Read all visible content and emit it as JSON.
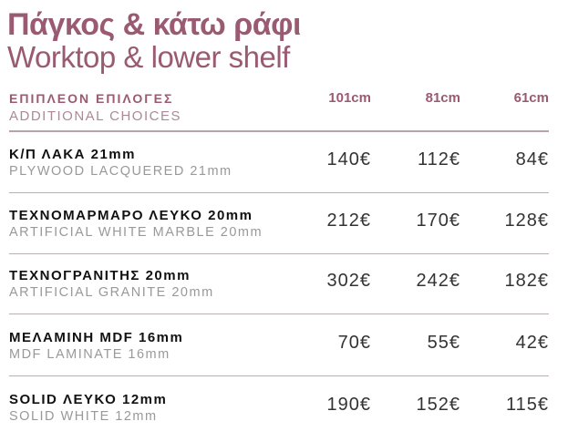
{
  "title": "Πάγκος & κάτω ράφι",
  "subtitle": "Worktop & lower shelf",
  "header": {
    "label_gr": "ΕΠΙΠΛΕΟΝ ΕΠΙΛΟΓΕΣ",
    "label_en": "ADDITIONAL CHOICES",
    "columns": [
      "101cm",
      "81cm",
      "61cm"
    ]
  },
  "accent_color": "#9a5a72",
  "rows": [
    {
      "name_gr": "Κ/Π ΛΑΚΑ 21mm",
      "name_en": "PLYWOOD LACQUERED 21mm",
      "prices": [
        "140€",
        "112€",
        "84€"
      ]
    },
    {
      "name_gr": "ΤΕΧΝΟΜΑΡΜΑΡΟ ΛΕΥΚΟ 20mm",
      "name_en": "ARTIFICIAL WHITE MARBLE 20mm",
      "prices": [
        "212€",
        "170€",
        "128€"
      ]
    },
    {
      "name_gr": "ΤΕΧΝΟΓΡΑΝΙΤΗΣ 20mm",
      "name_en": "ARTIFICIAL GRANITE 20mm",
      "prices": [
        "302€",
        "242€",
        "182€"
      ]
    },
    {
      "name_gr": "ΜΕΛΑΜΙΝΗ MDF 16mm",
      "name_en": "MDF LAMINATE 16mm",
      "prices": [
        "70€",
        "55€",
        "42€"
      ]
    },
    {
      "name_gr": "SOLID ΛΕΥΚΟ 12mm",
      "name_en": "SOLID WHITE 12mm",
      "prices": [
        "190€",
        "152€",
        "115€"
      ]
    }
  ]
}
